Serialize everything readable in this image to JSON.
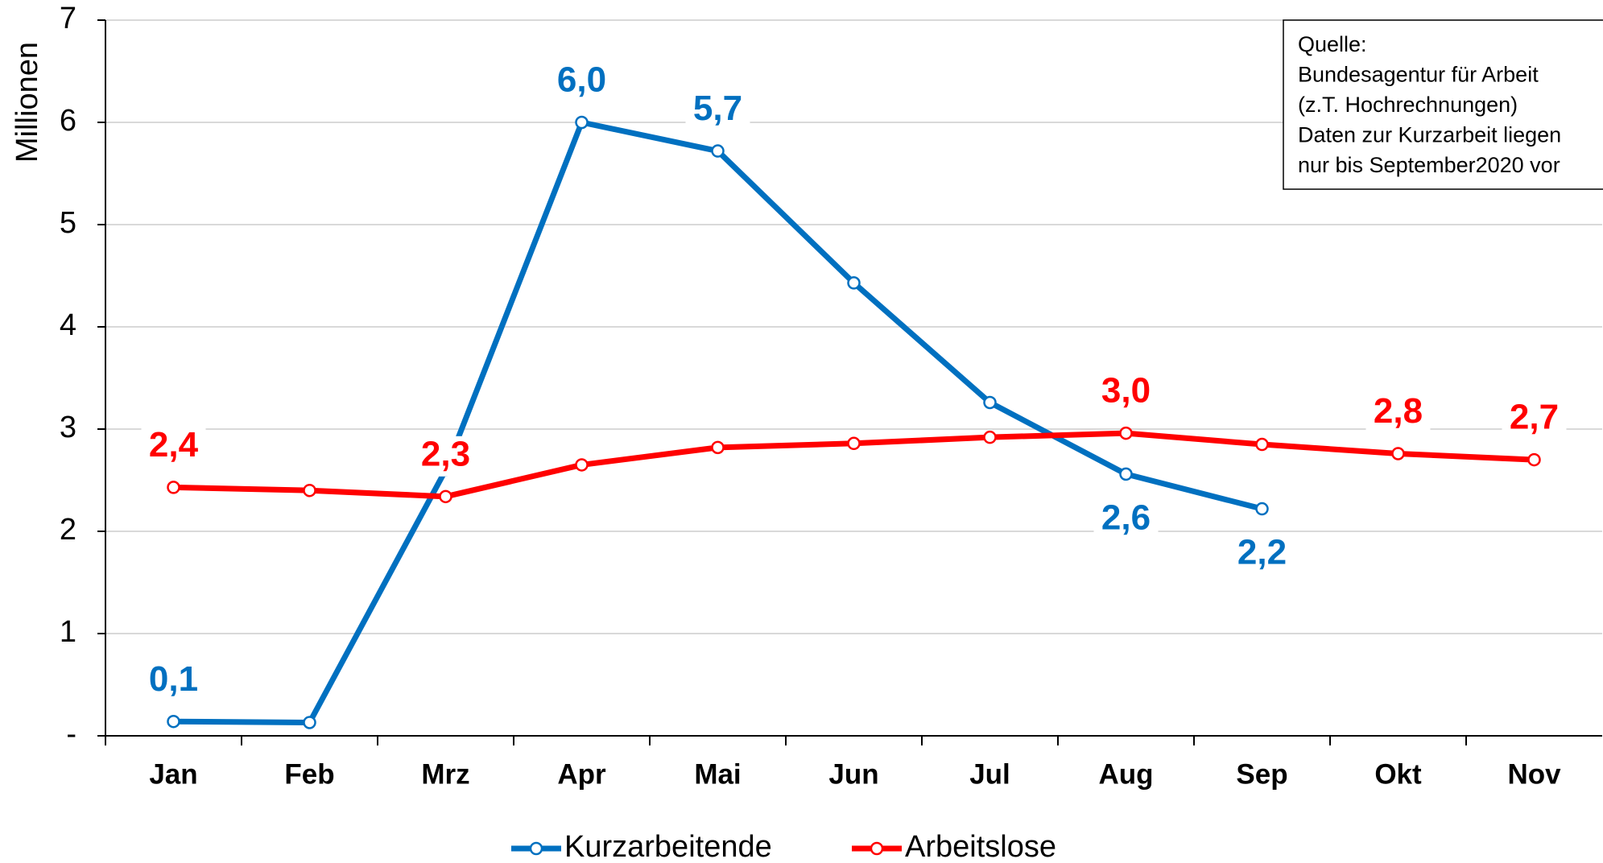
{
  "chart_data": {
    "type": "line",
    "y_axis_label": "Millionen",
    "categories": [
      "Jan",
      "Feb",
      "Mrz",
      "Apr",
      "Mai",
      "Jun",
      "Jul",
      "Aug",
      "Sep",
      "Okt",
      "Nov"
    ],
    "series": [
      {
        "name": "Kurzarbeitende",
        "color": "#0070c0",
        "values": [
          0.14,
          0.13,
          2.6,
          6.0,
          5.72,
          4.43,
          3.26,
          2.56,
          2.22,
          null,
          null
        ],
        "value_labels": [
          "0,1",
          null,
          null,
          "6,0",
          "5,7",
          null,
          null,
          "2,6",
          "2,2",
          null,
          null
        ]
      },
      {
        "name": "Arbeitslose",
        "color": "#ff0000",
        "values": [
          2.43,
          2.4,
          2.34,
          2.65,
          2.82,
          2.86,
          2.92,
          2.96,
          2.85,
          2.76,
          2.7
        ],
        "value_labels": [
          "2,4",
          null,
          "2,3",
          null,
          null,
          null,
          null,
          "3,0",
          null,
          "2,8",
          "2,7"
        ]
      }
    ],
    "ylim": [
      0,
      7
    ],
    "yticks": [
      {
        "value": 0,
        "label": "-"
      },
      1,
      2,
      3,
      4,
      5,
      6,
      7
    ],
    "grid": true,
    "legend": "bottom",
    "annotation": [
      "Quelle:",
      "Bundesagentur für Arbeit",
      "(z.T. Hochrechnungen)",
      "Daten zur Kurzarbeit liegen",
      "nur bis September2020 vor"
    ]
  }
}
